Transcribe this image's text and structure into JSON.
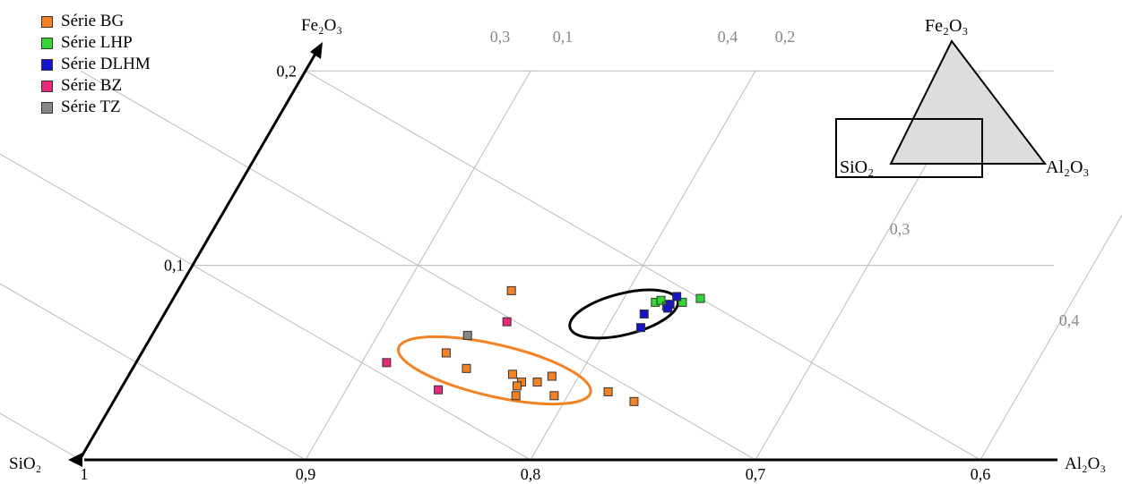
{
  "chart_data": {
    "type": "ternary-scatter",
    "axes": {
      "origin_label": "SiO₂",
      "bottom_label": "Al₂O₃",
      "left_label": "Fe₂O₃",
      "bottom_ticks": [
        "1",
        "0,9",
        "0,8",
        "0,7",
        "0,6"
      ],
      "bottom_tick_values": [
        1,
        0.9,
        0.8,
        0.7,
        0.6
      ],
      "left_ticks": [
        "0,1",
        "0,2"
      ],
      "left_tick_values": [
        0.1,
        0.2
      ],
      "grid_labels_top": [
        "0,3",
        "0,1",
        "0,4",
        "0,2"
      ],
      "grid_labels_right": [
        "0,3",
        "0,4"
      ]
    },
    "grid": true,
    "legend_position": "top-left",
    "series": [
      {
        "name": "Série BG",
        "color": "#f28224",
        "points": [
          {
            "sio2": 0.765,
            "fe2o3": 0.087
          },
          {
            "sio2": 0.81,
            "fe2o3": 0.055
          },
          {
            "sio2": 0.805,
            "fe2o3": 0.047
          },
          {
            "sio2": 0.786,
            "fe2o3": 0.044
          },
          {
            "sio2": 0.784,
            "fe2o3": 0.04
          },
          {
            "sio2": 0.787,
            "fe2o3": 0.038
          },
          {
            "sio2": 0.777,
            "fe2o3": 0.04
          },
          {
            "sio2": 0.769,
            "fe2o3": 0.043
          },
          {
            "sio2": 0.79,
            "fe2o3": 0.033
          },
          {
            "sio2": 0.773,
            "fe2o3": 0.033
          },
          {
            "sio2": 0.748,
            "fe2o3": 0.035
          },
          {
            "sio2": 0.739,
            "fe2o3": 0.03
          }
        ]
      },
      {
        "name": "Série LHP",
        "color": "#33d633",
        "points": [
          {
            "sio2": 0.704,
            "fe2o3": 0.081
          },
          {
            "sio2": 0.701,
            "fe2o3": 0.082
          },
          {
            "sio2": 0.692,
            "fe2o3": 0.081
          },
          {
            "sio2": 0.7,
            "fe2o3": 0.079
          },
          {
            "sio2": 0.683,
            "fe2o3": 0.083
          }
        ]
      },
      {
        "name": "Série DLHM",
        "color": "#1414cc",
        "points": [
          {
            "sio2": 0.698,
            "fe2o3": 0.08
          },
          {
            "sio2": 0.7,
            "fe2o3": 0.078
          },
          {
            "sio2": 0.693,
            "fe2o3": 0.084
          },
          {
            "sio2": 0.712,
            "fe2o3": 0.075
          },
          {
            "sio2": 0.717,
            "fe2o3": 0.068
          }
        ]
      },
      {
        "name": "Série BZ",
        "color": "#e8287a",
        "points": [
          {
            "sio2": 0.775,
            "fe2o3": 0.071
          },
          {
            "sio2": 0.839,
            "fe2o3": 0.05
          },
          {
            "sio2": 0.823,
            "fe2o3": 0.036
          }
        ]
      },
      {
        "name": "Série TZ",
        "color": "#888888",
        "points": [
          {
            "sio2": 0.796,
            "fe2o3": 0.064
          }
        ]
      }
    ],
    "ellipses": [
      {
        "center": {
          "sio2": 0.793,
          "fe2o3": 0.046
        },
        "color": "#f28224"
      },
      {
        "center": {
          "sio2": 0.721,
          "fe2o3": 0.075
        },
        "color": "#000000"
      }
    ],
    "inset": {
      "labels": [
        "Fe₂O₃",
        "SiO₂",
        "Al₂O₃"
      ],
      "fill": "#dddddd"
    }
  }
}
